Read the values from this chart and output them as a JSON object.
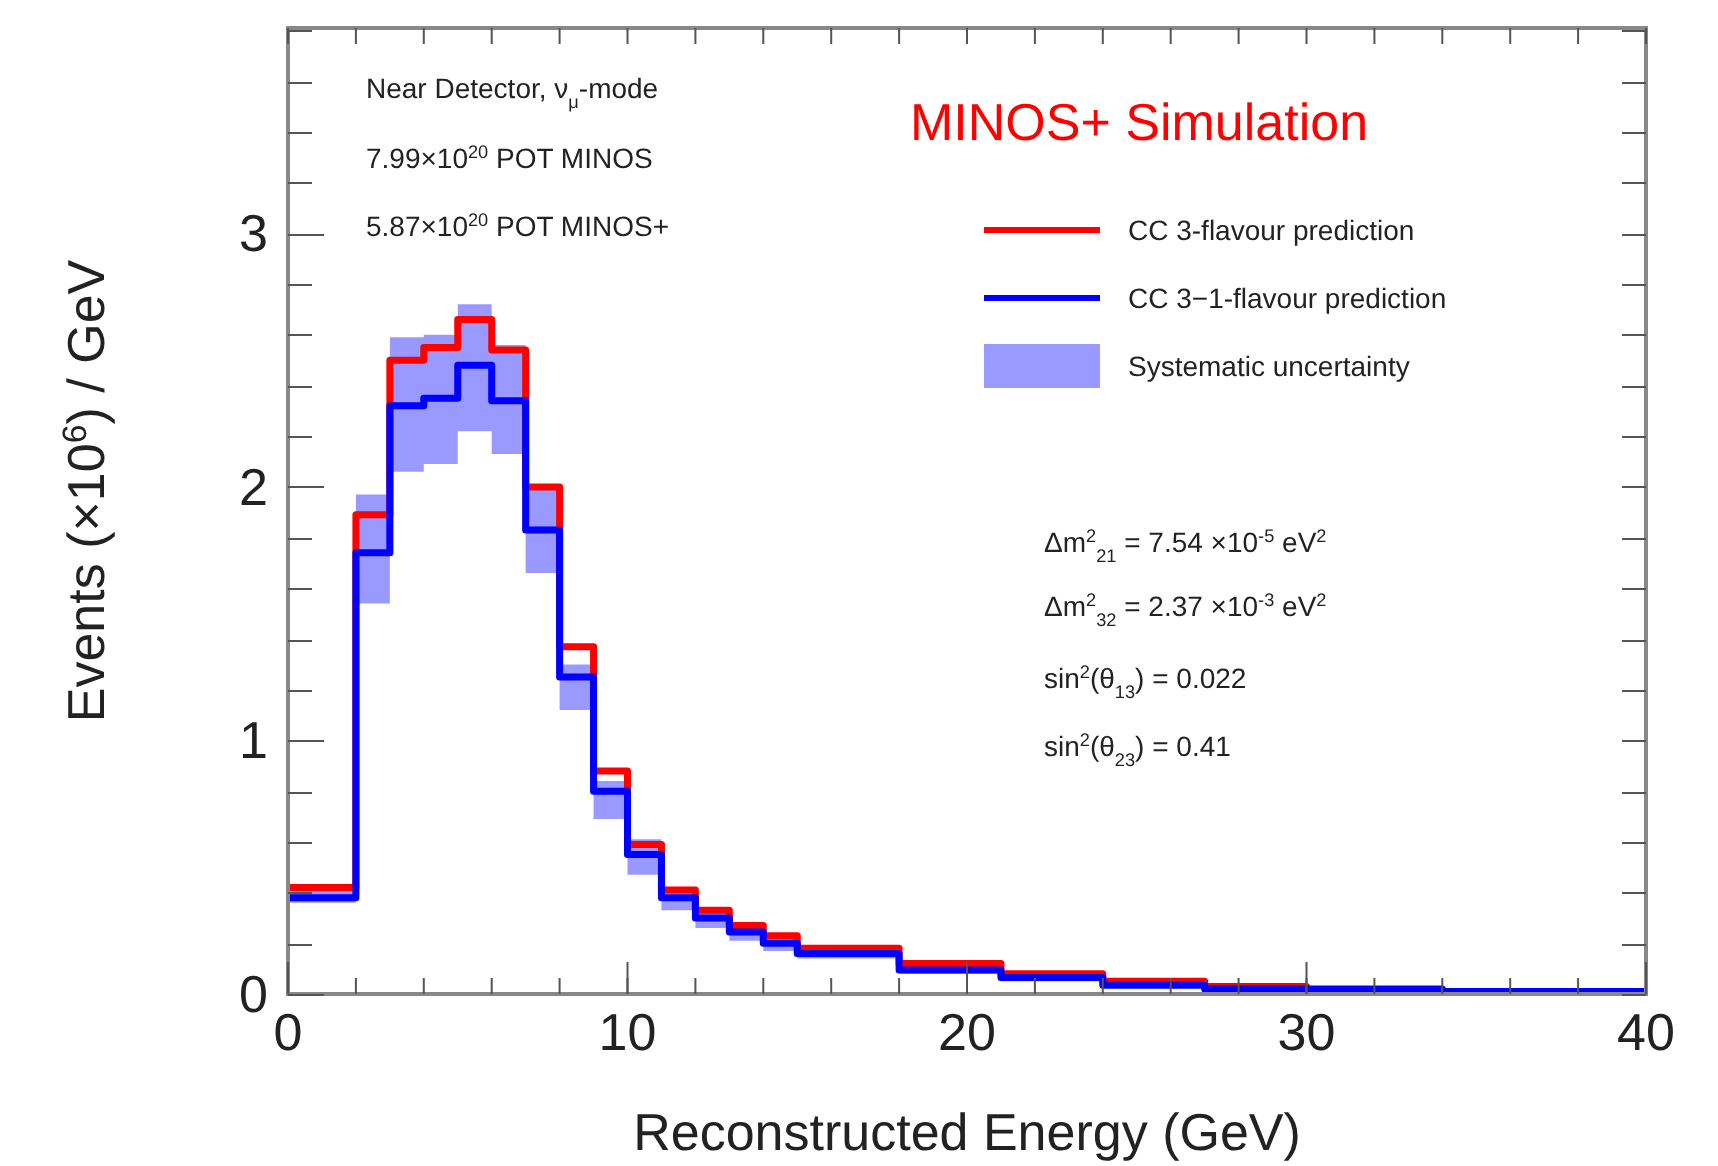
{
  "chart_data": {
    "type": "step",
    "xlabel": "Reconstructed Energy (GeV)",
    "ylabel": "Events (×10$^{6}$) / GeV",
    "x": [
      0,
      2,
      3,
      4,
      5,
      6,
      7,
      8,
      9,
      10,
      11,
      12,
      13,
      14,
      15,
      18,
      21,
      24,
      27,
      30,
      34,
      40
    ],
    "series": [
      {
        "name": "CC 3-flavour prediction",
        "color": "#ff0000",
        "values": [
          0.42,
          1.89,
          2.5,
          2.55,
          2.66,
          2.54,
          2.0,
          1.37,
          0.88,
          0.59,
          0.41,
          0.33,
          0.27,
          0.23,
          0.18,
          0.12,
          0.08,
          0.05,
          0.03,
          0.02,
          null,
          null
        ]
      },
      {
        "name": "CC 3−1-flavour prediction",
        "color": "#0000ff",
        "values": [
          0.38,
          1.74,
          2.32,
          2.35,
          2.48,
          2.34,
          1.83,
          1.25,
          0.8,
          0.55,
          0.38,
          0.3,
          0.245,
          0.2,
          0.16,
          0.095,
          0.065,
          0.035,
          0.02,
          0.02,
          0.01,
          0.01
        ],
        "lower": [
          0.36,
          1.54,
          2.06,
          2.09,
          2.22,
          2.13,
          1.66,
          1.12,
          0.69,
          0.47,
          0.33,
          0.26,
          0.21,
          0.17,
          0.14,
          0.08,
          0.05,
          0.03,
          0.015,
          0.01,
          0.005,
          0.005
        ],
        "upper": [
          0.42,
          1.97,
          2.59,
          2.6,
          2.72,
          2.56,
          2.0,
          1.3,
          0.84,
          0.61,
          0.42,
          0.33,
          0.27,
          0.23,
          0.18,
          0.12,
          0.08,
          0.05,
          0.03,
          0.02,
          0.015,
          0.015
        ]
      }
    ],
    "xlim": [
      0,
      40
    ],
    "xticks": [
      0,
      10,
      20,
      30,
      40
    ],
    "ylim": [
      0,
      3.81
    ],
    "yticks": [
      0,
      1,
      2,
      3
    ],
    "legend": "top right",
    "grid": false,
    "annotations": [
      "Near Detector, ν$_{μ}$-mode",
      "7.99×10$^{20}$ POT MINOS",
      "5.87×10$^{20}$ POT MINOS+",
      "MINOS+ Simulation",
      "Δm$^{2}$$_{21}$ = 7.54 ×10$^{-5}$ eV$^{2}$",
      "Δm$^{2}$$_{32}$ = 2.37 ×10$^{-3}$ eV$^{2}$",
      "sin$^{2}$(θ$_{13}$) = 0.022",
      "sin$^{2}$(θ$_{23}$) = 0.41",
      "Systematic uncertainty"
    ]
  }
}
